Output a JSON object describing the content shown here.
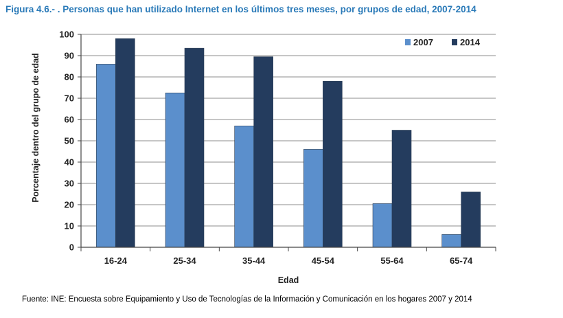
{
  "figure_title": "Figura 4.6.- . Personas que han utilizado Internet en los últimos tres meses, por grupos de edad, 2007-2014",
  "source": "Fuente: INE: Encuesta sobre Equipamiento y Uso de Tecnologías de la Información y  Comunicación en los hogares 2007 y  2014",
  "chart_data": {
    "type": "bar",
    "categories": [
      "16-24",
      "25-34",
      "35-44",
      "45-54",
      "55-64",
      "65-74"
    ],
    "series": [
      {
        "name": "2007",
        "values": [
          86,
          72.5,
          57,
          46,
          20.5,
          6
        ],
        "color": "#5b8fcc"
      },
      {
        "name": "2014",
        "values": [
          98,
          93.5,
          89.5,
          78,
          55,
          26
        ],
        "color": "#243c5e"
      }
    ],
    "title": "",
    "xlabel": "Edad",
    "ylabel": "Porcentaje dentro del grupo de edad",
    "ylim": [
      0,
      100
    ],
    "yticks": [
      0,
      10,
      20,
      30,
      40,
      50,
      60,
      70,
      80,
      90,
      100
    ],
    "grid": true,
    "legend": "top-right"
  }
}
